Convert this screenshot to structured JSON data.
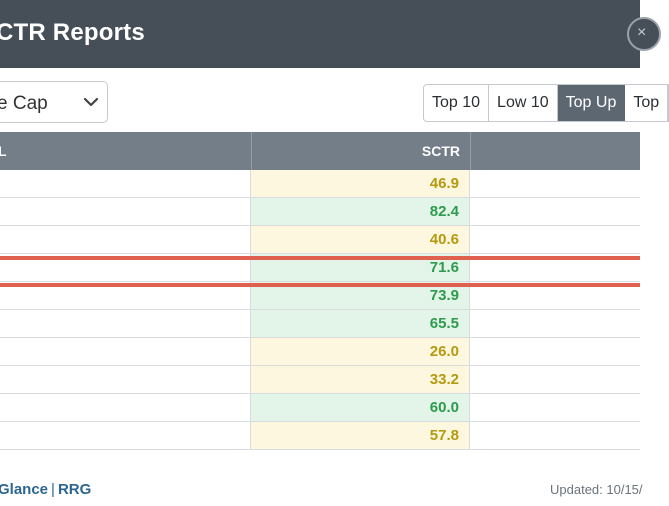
{
  "header": {
    "title": "CTR Reports",
    "close_glyph": "×"
  },
  "filter": {
    "selected": "e Cap"
  },
  "tabs": [
    {
      "label": "Top 10",
      "active": false
    },
    {
      "label": "Low 10",
      "active": false
    },
    {
      "label": "Top Up",
      "active": true
    },
    {
      "label": "Top",
      "active": false
    }
  ],
  "table": {
    "columns": [
      "L",
      "SCTR"
    ],
    "rows": [
      {
        "sctr": "46.9",
        "color": "#b59a10",
        "bg": "#fdf7df"
      },
      {
        "sctr": "82.4",
        "color": "#2e9a4e",
        "bg": "#e3f5e8"
      },
      {
        "sctr": "40.6",
        "color": "#b59a10",
        "bg": "#fdf7df"
      },
      {
        "sctr": "71.6",
        "color": "#2e9a4e",
        "bg": "#e3f5e8"
      },
      {
        "sctr": "73.9",
        "color": "#2e9a4e",
        "bg": "#e3f5e8"
      },
      {
        "sctr": "65.5",
        "color": "#2e9a4e",
        "bg": "#e3f5e8"
      },
      {
        "sctr": "26.0",
        "color": "#b59a10",
        "bg": "#fdf7df"
      },
      {
        "sctr": "33.2",
        "color": "#b59a10",
        "bg": "#fdf7df"
      },
      {
        "sctr": "60.0",
        "color": "#2e9a4e",
        "bg": "#e3f5e8"
      },
      {
        "sctr": "57.8",
        "color": "#b59a10",
        "bg": "#fdf7df"
      }
    ]
  },
  "footer": {
    "link_glance": "Glance",
    "link_separator": "|",
    "link_rrg": "RRG",
    "updated": "Updated: 10/15/"
  },
  "icons": {
    "dropdown": "chevron-down-icon",
    "close": "close-icon"
  }
}
